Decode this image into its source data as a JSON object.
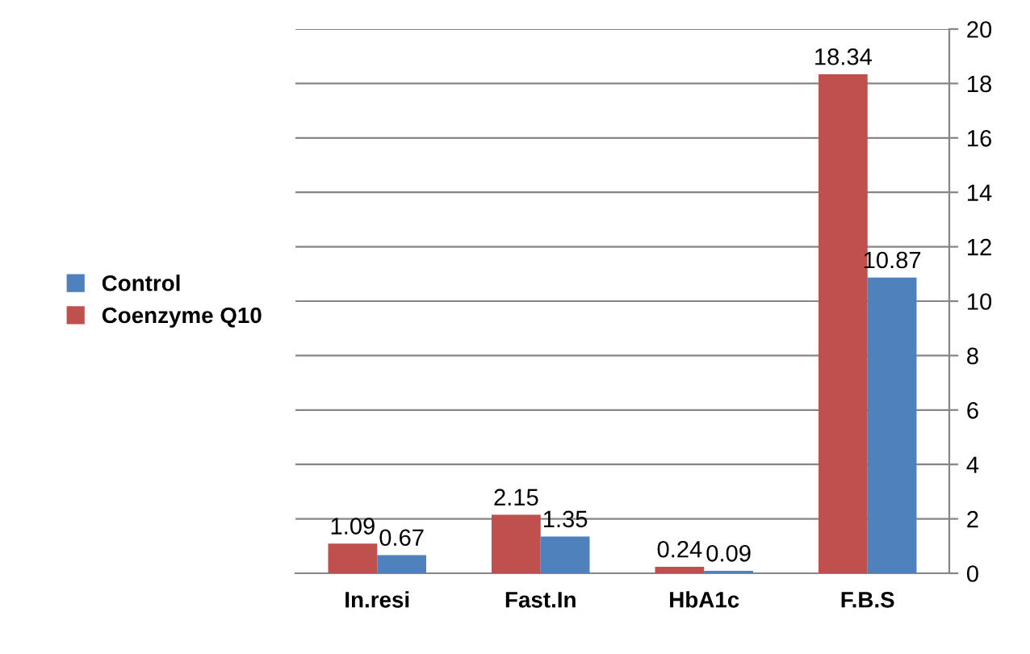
{
  "chart_data": {
    "type": "bar",
    "categories": [
      "In.resi",
      "Fast.In",
      "HbA1c",
      "F.B.S"
    ],
    "series": [
      {
        "name": "Coenzyme Q10",
        "color": "#c0504d",
        "values": [
          1.09,
          2.15,
          0.24,
          18.34
        ]
      },
      {
        "name": "Control",
        "color": "#4f81bd",
        "values": [
          0.67,
          1.35,
          0.09,
          10.87
        ]
      }
    ],
    "ylim": [
      0,
      20
    ],
    "yticks": [
      0,
      2,
      4,
      6,
      8,
      10,
      12,
      14,
      16,
      18,
      20
    ],
    "grid": "y",
    "legend": "left",
    "data_labels": true
  }
}
